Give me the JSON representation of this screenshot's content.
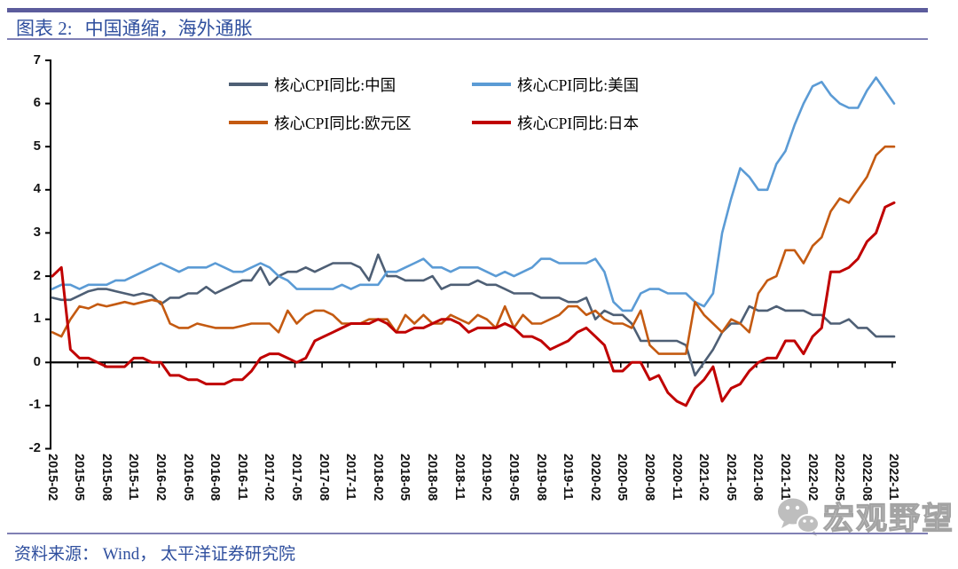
{
  "title": {
    "figure_label": "图表 2:",
    "text": "中国通缩，海外通胀"
  },
  "footer": {
    "source": "资料来源： Wind， 太平洋证券研究院"
  },
  "watermark": {
    "text": "宏观野望"
  },
  "colors": {
    "china": "#4E5F75",
    "us": "#5B9BD5",
    "eurozone": "#C45A11",
    "japan": "#C00000",
    "header_bar": "#5C5C9C",
    "thin_rule": "#8080B4",
    "title_text": "#2F4F9E",
    "axis": "#000000",
    "watermark_gray": "#ADADAD"
  },
  "chart_data": {
    "type": "line",
    "title": "中国通缩，海外通胀",
    "xlabel": "",
    "ylabel": "",
    "ylim": [
      -2,
      7
    ],
    "y_ticks": [
      7,
      6,
      5,
      4,
      3,
      2,
      1,
      0,
      -1,
      -2
    ],
    "x_tick_interval": 3,
    "grid": false,
    "legend_position": "top-center-2x2",
    "months": [
      "2015-02",
      "2015-03",
      "2015-04",
      "2015-05",
      "2015-06",
      "2015-07",
      "2015-08",
      "2015-09",
      "2015-10",
      "2015-11",
      "2015-12",
      "2016-01",
      "2016-02",
      "2016-03",
      "2016-04",
      "2016-05",
      "2016-06",
      "2016-07",
      "2016-08",
      "2016-09",
      "2016-10",
      "2016-11",
      "2016-12",
      "2017-01",
      "2017-02",
      "2017-03",
      "2017-04",
      "2017-05",
      "2017-06",
      "2017-07",
      "2017-08",
      "2017-09",
      "2017-10",
      "2017-11",
      "2017-12",
      "2018-01",
      "2018-02",
      "2018-03",
      "2018-04",
      "2018-05",
      "2018-06",
      "2018-07",
      "2018-08",
      "2018-09",
      "2018-10",
      "2018-11",
      "2018-12",
      "2019-01",
      "2019-02",
      "2019-03",
      "2019-04",
      "2019-05",
      "2019-06",
      "2019-07",
      "2019-08",
      "2019-09",
      "2019-10",
      "2019-11",
      "2019-12",
      "2020-01",
      "2020-02",
      "2020-03",
      "2020-04",
      "2020-05",
      "2020-06",
      "2020-07",
      "2020-08",
      "2020-09",
      "2020-10",
      "2020-11",
      "2020-12",
      "2021-01",
      "2021-02",
      "2021-03",
      "2021-04",
      "2021-05",
      "2021-06",
      "2021-07",
      "2021-08",
      "2021-09",
      "2021-10",
      "2021-11",
      "2021-12",
      "2022-01",
      "2022-02",
      "2022-03",
      "2022-04",
      "2022-05",
      "2022-06",
      "2022-07",
      "2022-08",
      "2022-09",
      "2022-10",
      "2022-11"
    ],
    "series": [
      {
        "name": "核心CPI同比:中国",
        "color": "#4E5F75",
        "values": [
          1.5,
          1.45,
          1.45,
          1.55,
          1.65,
          1.7,
          1.7,
          1.65,
          1.6,
          1.55,
          1.6,
          1.55,
          1.35,
          1.5,
          1.5,
          1.6,
          1.6,
          1.75,
          1.6,
          1.7,
          1.8,
          1.9,
          1.9,
          2.2,
          1.8,
          2.0,
          2.1,
          2.1,
          2.2,
          2.1,
          2.2,
          2.3,
          2.3,
          2.3,
          2.2,
          1.9,
          2.5,
          2.0,
          2.0,
          1.9,
          1.9,
          1.9,
          2.0,
          1.7,
          1.8,
          1.8,
          1.8,
          1.9,
          1.8,
          1.8,
          1.7,
          1.6,
          1.6,
          1.6,
          1.5,
          1.5,
          1.5,
          1.4,
          1.4,
          1.5,
          1.0,
          1.2,
          1.1,
          1.1,
          0.9,
          0.5,
          0.5,
          0.5,
          0.5,
          0.5,
          0.4,
          -0.3,
          0.0,
          0.3,
          0.7,
          0.9,
          0.9,
          1.3,
          1.2,
          1.2,
          1.3,
          1.2,
          1.2,
          1.2,
          1.1,
          1.1,
          0.9,
          0.9,
          1.0,
          0.8,
          0.8,
          0.6,
          0.6,
          0.6
        ]
      },
      {
        "name": "核心CPI同比:美国",
        "color": "#5B9BD5",
        "values": [
          1.7,
          1.8,
          1.8,
          1.7,
          1.8,
          1.8,
          1.8,
          1.9,
          1.9,
          2.0,
          2.1,
          2.2,
          2.3,
          2.2,
          2.1,
          2.2,
          2.2,
          2.2,
          2.3,
          2.2,
          2.1,
          2.1,
          2.2,
          2.3,
          2.2,
          2.0,
          1.9,
          1.7,
          1.7,
          1.7,
          1.7,
          1.7,
          1.8,
          1.7,
          1.8,
          1.8,
          1.8,
          2.1,
          2.1,
          2.2,
          2.3,
          2.4,
          2.2,
          2.2,
          2.1,
          2.2,
          2.2,
          2.2,
          2.1,
          2.0,
          2.1,
          2.0,
          2.1,
          2.2,
          2.4,
          2.4,
          2.3,
          2.3,
          2.3,
          2.3,
          2.4,
          2.1,
          1.4,
          1.2,
          1.2,
          1.6,
          1.7,
          1.7,
          1.6,
          1.6,
          1.6,
          1.4,
          1.3,
          1.6,
          3.0,
          3.8,
          4.5,
          4.3,
          4.0,
          4.0,
          4.6,
          4.9,
          5.5,
          6.0,
          6.4,
          6.5,
          6.2,
          6.0,
          5.9,
          5.9,
          6.3,
          6.6,
          6.3,
          6.0
        ]
      },
      {
        "name": "核心CPI同比:欧元区",
        "color": "#C45A11",
        "values": [
          0.7,
          0.6,
          1.0,
          1.3,
          1.25,
          1.35,
          1.3,
          1.35,
          1.4,
          1.35,
          1.4,
          1.45,
          1.4,
          0.9,
          0.8,
          0.8,
          0.9,
          0.85,
          0.8,
          0.8,
          0.8,
          0.85,
          0.9,
          0.9,
          0.9,
          0.7,
          1.2,
          0.9,
          1.1,
          1.2,
          1.2,
          1.1,
          0.9,
          0.9,
          0.9,
          1.0,
          1.0,
          1.0,
          0.7,
          1.1,
          0.9,
          1.1,
          0.9,
          0.9,
          1.1,
          1.0,
          0.9,
          1.1,
          1.0,
          0.8,
          1.3,
          0.8,
          1.1,
          0.9,
          0.9,
          1.0,
          1.1,
          1.3,
          1.3,
          1.1,
          1.2,
          1.0,
          0.9,
          0.9,
          0.8,
          1.2,
          0.4,
          0.2,
          0.2,
          0.2,
          0.2,
          1.4,
          1.1,
          0.9,
          0.7,
          1.0,
          0.9,
          0.7,
          1.6,
          1.9,
          2.0,
          2.6,
          2.6,
          2.3,
          2.7,
          2.9,
          3.5,
          3.8,
          3.7,
          4.0,
          4.3,
          4.8,
          5.0,
          5.0
        ]
      },
      {
        "name": "核心CPI同比:日本",
        "color": "#C00000",
        "values": [
          2.0,
          2.2,
          0.3,
          0.1,
          0.1,
          0.0,
          -0.1,
          -0.1,
          -0.1,
          0.1,
          0.1,
          0.0,
          0.0,
          -0.3,
          -0.3,
          -0.4,
          -0.4,
          -0.5,
          -0.5,
          -0.5,
          -0.4,
          -0.4,
          -0.2,
          0.1,
          0.2,
          0.2,
          0.1,
          0.0,
          0.1,
          0.5,
          0.6,
          0.7,
          0.8,
          0.9,
          0.9,
          0.9,
          1.0,
          0.9,
          0.7,
          0.7,
          0.8,
          0.8,
          0.9,
          1.0,
          1.0,
          0.9,
          0.7,
          0.8,
          0.8,
          0.8,
          0.9,
          0.8,
          0.6,
          0.6,
          0.5,
          0.3,
          0.4,
          0.5,
          0.7,
          0.8,
          0.6,
          0.4,
          -0.2,
          -0.2,
          0.0,
          0.0,
          -0.4,
          -0.3,
          -0.7,
          -0.9,
          -1.0,
          -0.6,
          -0.4,
          -0.1,
          -0.9,
          -0.6,
          -0.5,
          -0.2,
          0.0,
          0.1,
          0.1,
          0.5,
          0.5,
          0.2,
          0.6,
          0.8,
          2.1,
          2.1,
          2.2,
          2.4,
          2.8,
          3.0,
          3.6,
          3.7
        ]
      }
    ]
  }
}
